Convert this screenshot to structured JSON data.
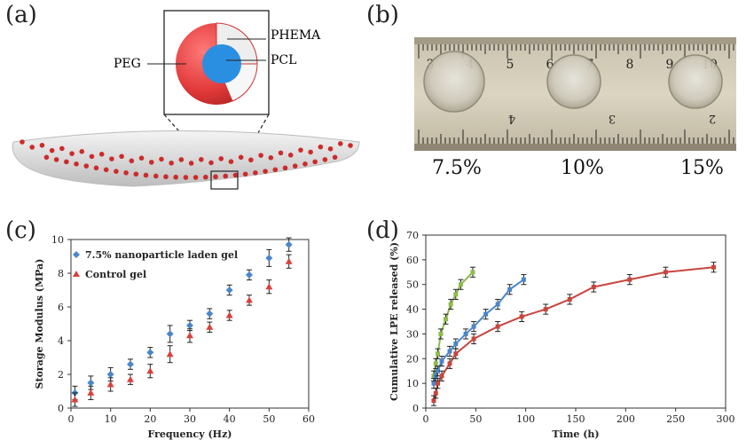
{
  "panels": {
    "a": {
      "letter": "(a)",
      "labels": {
        "phema": "PHEMA",
        "peg": "PEG",
        "pcl": "PCL"
      },
      "colors": {
        "peg": "#e23a3a",
        "phema": "#f2f2f2",
        "pcl": "#2a8fe0",
        "dots": "#cc2b2b"
      }
    },
    "b": {
      "letter": "(b)",
      "ruler_top_numbers": [
        "3",
        "4",
        "5",
        "6",
        "7",
        "8",
        "9",
        "10"
      ],
      "ruler_bottom_numbers": [
        "4",
        "3",
        "2"
      ],
      "concentrations": [
        "7.5%",
        "10%",
        "15%"
      ]
    },
    "c": {
      "letter": "(c)"
    },
    "d": {
      "letter": "(d)"
    }
  },
  "chart_data": [
    {
      "panel": "c",
      "type": "scatter",
      "xlabel": "Frequency (Hz)",
      "ylabel": "Storage Modulus (MPa)",
      "xlim": [
        0,
        60
      ],
      "ylim": [
        0,
        10
      ],
      "xticks": [
        0,
        10,
        20,
        30,
        40,
        50,
        60
      ],
      "yticks": [
        0,
        2,
        4,
        6,
        8,
        10
      ],
      "legend_position": "top-left",
      "grid": false,
      "series": [
        {
          "name": "7.5% nanoparticle laden gel",
          "marker": "diamond",
          "color": "#4a86c8",
          "x": [
            1,
            5,
            10,
            15,
            20,
            25,
            30,
            35,
            40,
            45,
            50,
            55
          ],
          "y": [
            0.9,
            1.5,
            2.0,
            2.6,
            3.3,
            4.4,
            4.9,
            5.6,
            7.0,
            7.9,
            8.9,
            9.7
          ],
          "err": [
            0.4,
            0.4,
            0.4,
            0.3,
            0.3,
            0.5,
            0.3,
            0.3,
            0.3,
            0.3,
            0.5,
            0.4
          ]
        },
        {
          "name": "Control gel",
          "marker": "triangle",
          "color": "#d9413a",
          "x": [
            1,
            5,
            10,
            15,
            20,
            25,
            30,
            35,
            40,
            45,
            50,
            55
          ],
          "y": [
            0.5,
            0.9,
            1.4,
            1.7,
            2.2,
            3.2,
            4.3,
            4.8,
            5.5,
            6.4,
            7.2,
            8.7
          ],
          "err": [
            0.4,
            0.4,
            0.4,
            0.3,
            0.4,
            0.5,
            0.4,
            0.3,
            0.3,
            0.3,
            0.4,
            0.4
          ]
        }
      ]
    },
    {
      "panel": "d",
      "type": "line",
      "xlabel": "Time (h)",
      "ylabel": "Cumulative LPE released (%)",
      "xlim": [
        0,
        300
      ],
      "ylim": [
        0,
        70
      ],
      "xticks": [
        0,
        50,
        100,
        150,
        200,
        250,
        300
      ],
      "yticks": [
        0,
        10,
        20,
        30,
        40,
        50,
        60,
        70
      ],
      "grid": false,
      "series": [
        {
          "color": "#8dbb4c",
          "x": [
            8,
            10,
            12,
            15,
            20,
            25,
            30,
            35,
            47
          ],
          "y": [
            13,
            18,
            22,
            30,
            36,
            42,
            46,
            50,
            55
          ],
          "err": [
            2,
            2,
            2,
            2,
            2,
            2,
            2,
            2,
            2
          ]
        },
        {
          "color": "#4a86c8",
          "x": [
            8,
            10,
            12,
            16,
            24,
            30,
            40,
            48,
            60,
            72,
            84,
            98
          ],
          "y": [
            10,
            13,
            15,
            19,
            23,
            26,
            30,
            33,
            38,
            42,
            48,
            52
          ],
          "err": [
            2,
            2,
            2,
            2,
            2,
            2,
            2,
            2,
            2,
            2,
            2,
            2
          ]
        },
        {
          "color": "#c7463e",
          "x": [
            8,
            10,
            12,
            16,
            24,
            30,
            48,
            72,
            96,
            120,
            144,
            168,
            204,
            240,
            288
          ],
          "y": [
            3,
            6,
            10,
            13,
            18,
            22,
            28,
            33,
            37,
            40,
            44,
            49,
            52,
            55,
            57
          ],
          "err": [
            2,
            2,
            2,
            2,
            2,
            2,
            2,
            2,
            2,
            2,
            2,
            2,
            2,
            2,
            2
          ]
        }
      ]
    }
  ]
}
